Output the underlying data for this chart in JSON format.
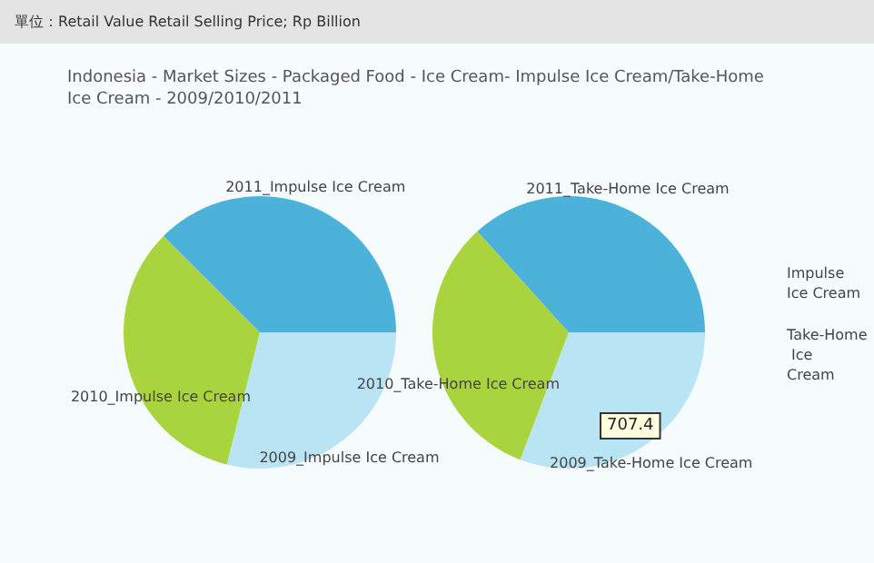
{
  "chart_data": [
    {
      "type": "pie",
      "title": "Indonesia - Market Sizes - Packaged Food - Ice Cream- Impulse Ice Cream/Take-Home Ice Cream - 2009/2010/2011",
      "annotations": [
        "單位：Retail Value Retail Selling Price; Rp Billion"
      ],
      "categories": [
        "2009_Impulse Ice Cream",
        "2010_Impulse Ice Cream",
        "2011_Impulse Ice Cream"
      ],
      "colors": [
        "#b8e4f4",
        "#a9d43e",
        "#4cb2da"
      ],
      "series": [
        {
          "name": "Impulse Ice Cream",
          "values": [
            28.9,
            33.6,
            37.5
          ]
        }
      ]
    },
    {
      "type": "pie",
      "annotations": [
        "707.4"
      ],
      "categories": [
        "2009_Take-Home Ice Cream",
        "2010_Take-Home Ice Cream",
        "2011_Take-Home Ice Cream"
      ],
      "colors": [
        "#b8e4f4",
        "#a9d43e",
        "#4cb2da"
      ],
      "series": [
        {
          "name": "Take-Home Ice Cream",
          "values": [
            30.8,
            32.5,
            36.7
          ]
        }
      ]
    }
  ]
}
